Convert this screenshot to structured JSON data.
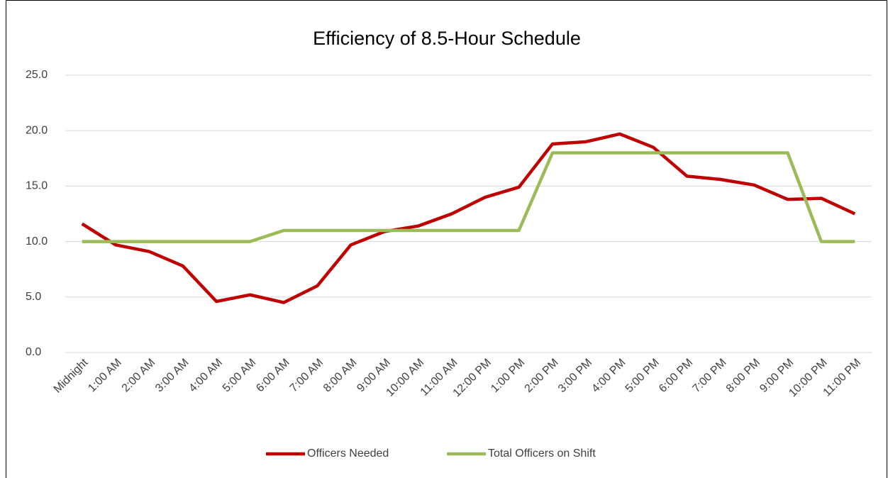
{
  "chart_data": {
    "type": "line",
    "title": "Efficiency of 8.5-Hour Schedule",
    "categories": [
      "Midnight",
      "1:00 AM",
      "2:00 AM",
      "3:00 AM",
      "4:00 AM",
      "5:00 AM",
      "6:00 AM",
      "7:00 AM",
      "8:00 AM",
      "9:00 AM",
      "10:00 AM",
      "11:00 AM",
      "12:00 PM",
      "1:00 PM",
      "2:00 PM",
      "3:00 PM",
      "4:00 PM",
      "5:00 PM",
      "6:00 PM",
      "7:00 PM",
      "8:00 PM",
      "9:00 PM",
      "10:00 PM",
      "11:00 PM"
    ],
    "series": [
      {
        "name": "Officers Needed",
        "color": "#c00000",
        "values": [
          11.6,
          9.7,
          9.1,
          7.8,
          4.6,
          5.2,
          4.5,
          6.0,
          9.7,
          10.9,
          11.4,
          12.5,
          14.0,
          14.9,
          18.8,
          19.0,
          19.7,
          18.5,
          15.9,
          15.6,
          15.1,
          13.8,
          13.9,
          12.5
        ]
      },
      {
        "name": "Total Officers on Shift",
        "color": "#9bbb59",
        "values": [
          10,
          10,
          10,
          10,
          10,
          10,
          11,
          11,
          11,
          11,
          11,
          11,
          11,
          11,
          18,
          18,
          18,
          18,
          18,
          18,
          18,
          18,
          10,
          10
        ]
      }
    ],
    "ylim": [
      0,
      25
    ],
    "yticks": [
      {
        "value": 0,
        "label": "0.0"
      },
      {
        "value": 5,
        "label": "5.0"
      },
      {
        "value": 10,
        "label": "10.0"
      },
      {
        "value": 15,
        "label": "15.0"
      },
      {
        "value": 20,
        "label": "20.0"
      },
      {
        "value": 25,
        "label": "25.0"
      }
    ],
    "grid": true,
    "legend": "bottom"
  }
}
